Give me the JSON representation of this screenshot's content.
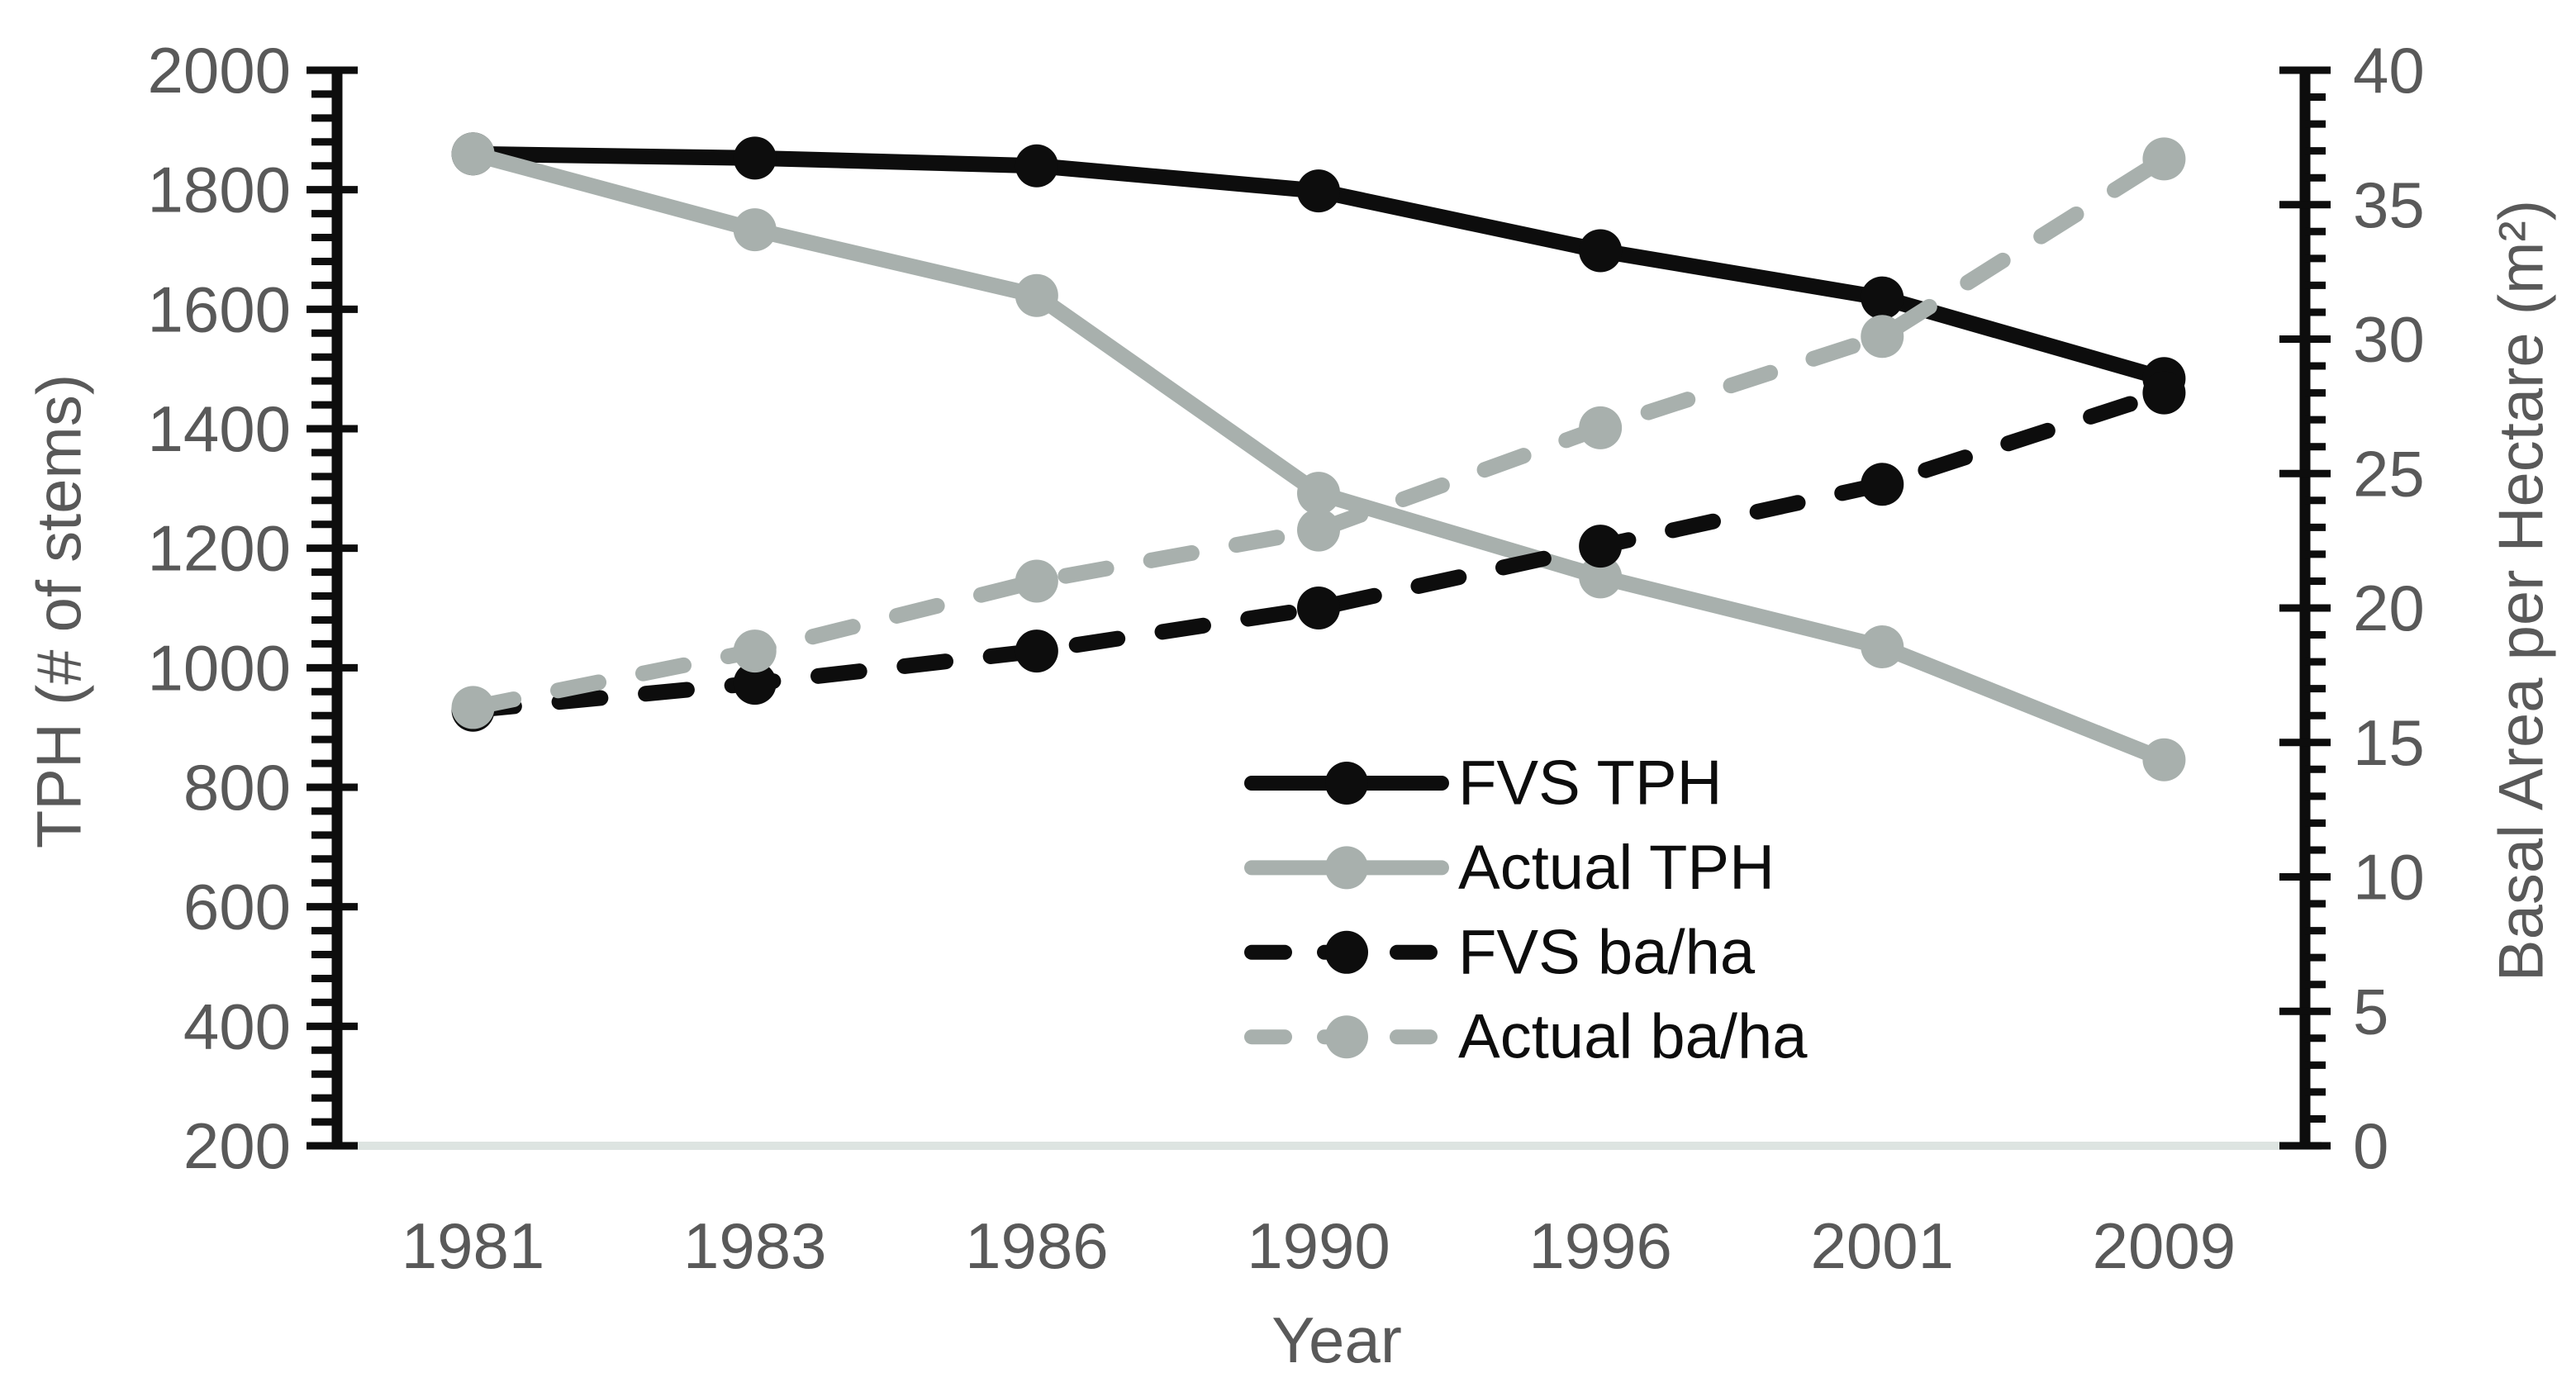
{
  "chart_data": {
    "type": "line",
    "title": "",
    "xlabel": "Year",
    "ylabel_left": "TPH (# of stems)",
    "ylabel_right": "Basal Area per Hectare (m²)",
    "categories": [
      1981,
      1983,
      1986,
      1990,
      1996,
      2001,
      2009
    ],
    "ylim_left": [
      200,
      2000
    ],
    "ytick_major_left": 200,
    "ytick_minor_left": 40,
    "ylim_right": [
      0,
      40
    ],
    "ytick_major_right": 5,
    "ytick_minor_right": 1,
    "grid": "off",
    "legend_position": "inside-lower-right",
    "series": [
      {
        "name": "FVS TPH",
        "axis": "left",
        "style": "solid",
        "color": "#0d0d0d",
        "values": [
          1860,
          1853,
          1840,
          1798,
          1698,
          1619,
          1484
        ]
      },
      {
        "name": "Actual TPH",
        "axis": "left",
        "style": "solid",
        "color": "#a8b0ad",
        "values": [
          1860,
          1733,
          1623,
          1292,
          1152,
          1035,
          846
        ]
      },
      {
        "name": "FVS ba/ha",
        "axis": "right",
        "style": "dashed",
        "color": "#0d0d0d",
        "values": [
          16.2,
          17.2,
          18.4,
          20.0,
          22.3,
          24.6,
          28.0
        ]
      },
      {
        "name": "Actual ba/ha",
        "axis": "right",
        "style": "dashed",
        "color": "#a8b0ad",
        "values": [
          16.3,
          18.4,
          21.0,
          22.9,
          26.7,
          30.1,
          36.7
        ]
      }
    ],
    "colors": {
      "axis_line": "#0d0d0d",
      "tick_label": "#595959",
      "axis_title": "#595959",
      "legend_text": "#0d0d0d",
      "baseline": "#dde4e1",
      "background": "#ffffff"
    }
  }
}
